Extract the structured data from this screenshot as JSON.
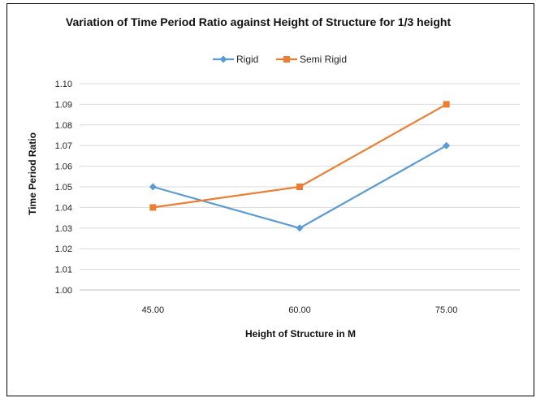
{
  "chart_data": {
    "type": "line",
    "title": "Variation of Time Period Ratio against Height of Structure for 1/3 height",
    "xlabel": "Height of Structure in M",
    "ylabel": "Time Period Ratio",
    "categories": [
      "45.00",
      "60.00",
      "75.00"
    ],
    "ylim": [
      1.0,
      1.1
    ],
    "yticks": [
      "1.00",
      "1.01",
      "1.02",
      "1.03",
      "1.04",
      "1.05",
      "1.06",
      "1.07",
      "1.08",
      "1.09",
      "1.10"
    ],
    "grid": true,
    "legend_position": "top",
    "series": [
      {
        "name": "Rigid",
        "values": [
          1.05,
          1.03,
          1.07
        ],
        "color": "#5b9bd5",
        "marker": "diamond"
      },
      {
        "name": "Semi Rigid",
        "values": [
          1.04,
          1.05,
          1.09
        ],
        "color": "#ed7d31",
        "marker": "square"
      }
    ]
  }
}
